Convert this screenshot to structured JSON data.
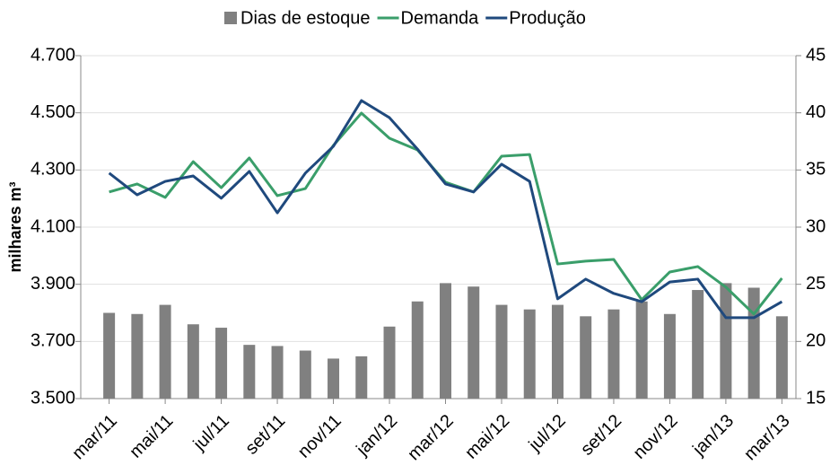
{
  "chart_data": {
    "type": "bar-line",
    "ylabel": "milhares m³",
    "categories": [
      "mar/11",
      null,
      "mai/11",
      null,
      "jul/11",
      null,
      "set/11",
      null,
      "nov/11",
      null,
      "jan/12",
      null,
      "mar/12",
      null,
      "mai/12",
      null,
      "jul/12",
      null,
      "set/12",
      null,
      "nov/12",
      null,
      "jan/13",
      null,
      "mar/13"
    ],
    "series": [
      {
        "name": "Dias de estoque",
        "type": "bar",
        "axis": "y2",
        "color": "#808080",
        "values": [
          22.5,
          22.4,
          23.2,
          21.5,
          21.2,
          19.7,
          19.6,
          19.2,
          18.5,
          18.7,
          21.3,
          23.5,
          25.1,
          24.8,
          23.2,
          22.8,
          23.2,
          22.2,
          22.8,
          23.5,
          22.4,
          24.5,
          25.1,
          24.7,
          22.2
        ]
      },
      {
        "name": "Demanda",
        "type": "line",
        "color": "#3a9e6a",
        "values": [
          4223,
          4251,
          4204,
          4329,
          4238,
          4342,
          4210,
          4235,
          4386,
          4499,
          4411,
          4370,
          4257,
          4223,
          4348,
          4354,
          3971,
          3981,
          3987,
          3846,
          3943,
          3962,
          3890,
          3796,
          3921
        ]
      },
      {
        "name": "Produção",
        "type": "line",
        "color": "#1f497d",
        "values": [
          4289,
          4213,
          4260,
          4279,
          4201,
          4295,
          4150,
          4289,
          4383,
          4543,
          4483,
          4373,
          4251,
          4223,
          4320,
          4260,
          3849,
          3918,
          3868,
          3839,
          3908,
          3918,
          3783,
          3783,
          3839
        ]
      }
    ],
    "ylim": [
      3500,
      4700
    ],
    "yticks": [
      {
        "value": 3500,
        "label": "3.500"
      },
      {
        "value": 3700,
        "label": "3.700"
      },
      {
        "value": 3900,
        "label": "3.900"
      },
      {
        "value": 4100,
        "label": "4.100"
      },
      {
        "value": 4300,
        "label": "4.300"
      },
      {
        "value": 4500,
        "label": "4.500"
      },
      {
        "value": 4700,
        "label": "4.700"
      }
    ],
    "y2lim": [
      15,
      45
    ],
    "y2ticks": [
      15,
      20,
      25,
      30,
      35,
      40,
      45
    ],
    "grid": true,
    "legend": "top"
  }
}
